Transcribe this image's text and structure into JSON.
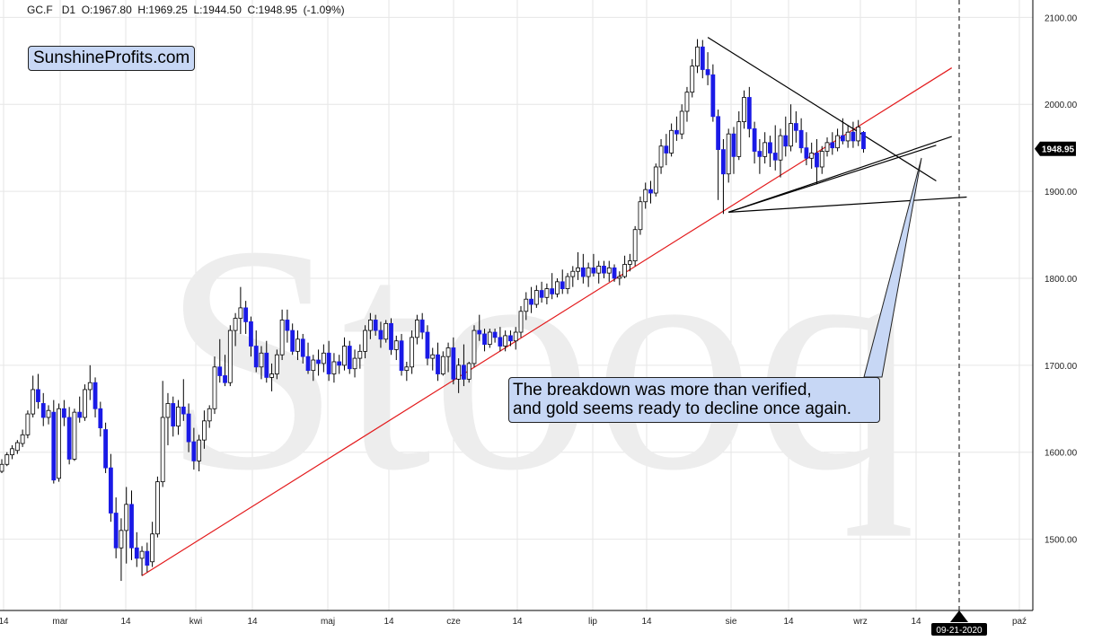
{
  "header": {
    "symbol": "GC.F",
    "interval": "D1",
    "open": "O:1967.80",
    "high": "H:1969.25",
    "low": "L:1944.50",
    "close": "C:1948.95",
    "change": "(-1.09%)"
  },
  "brand_label": "SunshineProfits.com",
  "watermark": "Stooq",
  "annotation": {
    "line1": "The breakdown was more than verified,",
    "line2": "and gold seems ready to decline once again."
  },
  "last_price_label": "1948.95",
  "cursor_date_label": "09-21-2020",
  "colors": {
    "up_candle_fill": "#ffffff",
    "down_candle_fill": "#1a1ae6",
    "candle_outline": "#000000",
    "trendline_red": "#e31a1c",
    "triangle_lines": "#000000",
    "grid": "#e6e6e6",
    "callout_fill": "#c7d7f5",
    "last_price_bg": "#000000"
  },
  "chart_data": {
    "type": "candlestick",
    "title": "GC.F D1",
    "y_axis": {
      "range": [
        1418,
        2120
      ],
      "ticks": [
        1500,
        1600,
        1700,
        1800,
        1900,
        2000,
        2100
      ],
      "tick_labels": [
        "1500.00",
        "1600.00",
        "1700.00",
        "1800.00",
        "1900.00",
        "2000.00",
        "2100.00"
      ],
      "side": "right"
    },
    "x_axis": {
      "tick_labels": [
        "14",
        "mar",
        "14",
        "kwi",
        "14",
        "maj",
        "14",
        "cze",
        "14",
        "lip",
        "14",
        "sie",
        "14",
        "wrz",
        "14",
        "paź"
      ]
    },
    "grid": true,
    "candles": [
      {
        "o": 1578,
        "h": 1592,
        "l": 1576,
        "c": 1586
      },
      {
        "o": 1586,
        "h": 1600,
        "l": 1584,
        "c": 1597
      },
      {
        "o": 1597,
        "h": 1608,
        "l": 1592,
        "c": 1604
      },
      {
        "o": 1602,
        "h": 1614,
        "l": 1598,
        "c": 1611
      },
      {
        "o": 1610,
        "h": 1626,
        "l": 1606,
        "c": 1620
      },
      {
        "o": 1620,
        "h": 1648,
        "l": 1616,
        "c": 1644
      },
      {
        "o": 1644,
        "h": 1688,
        "l": 1640,
        "c": 1672
      },
      {
        "o": 1672,
        "h": 1690,
        "l": 1650,
        "c": 1658
      },
      {
        "o": 1656,
        "h": 1668,
        "l": 1630,
        "c": 1640
      },
      {
        "o": 1640,
        "h": 1654,
        "l": 1632,
        "c": 1648
      },
      {
        "o": 1646,
        "h": 1660,
        "l": 1564,
        "c": 1568
      },
      {
        "o": 1570,
        "h": 1656,
        "l": 1566,
        "c": 1650
      },
      {
        "o": 1650,
        "h": 1660,
        "l": 1630,
        "c": 1640
      },
      {
        "o": 1640,
        "h": 1652,
        "l": 1586,
        "c": 1592
      },
      {
        "o": 1592,
        "h": 1650,
        "l": 1590,
        "c": 1646
      },
      {
        "o": 1646,
        "h": 1664,
        "l": 1634,
        "c": 1640
      },
      {
        "o": 1640,
        "h": 1678,
        "l": 1636,
        "c": 1672
      },
      {
        "o": 1672,
        "h": 1700,
        "l": 1660,
        "c": 1680
      },
      {
        "o": 1680,
        "h": 1686,
        "l": 1640,
        "c": 1650
      },
      {
        "o": 1650,
        "h": 1658,
        "l": 1618,
        "c": 1628
      },
      {
        "o": 1626,
        "h": 1634,
        "l": 1576,
        "c": 1582
      },
      {
        "o": 1582,
        "h": 1598,
        "l": 1520,
        "c": 1530
      },
      {
        "o": 1530,
        "h": 1548,
        "l": 1478,
        "c": 1490
      },
      {
        "o": 1490,
        "h": 1524,
        "l": 1452,
        "c": 1510
      },
      {
        "o": 1510,
        "h": 1560,
        "l": 1472,
        "c": 1540
      },
      {
        "o": 1540,
        "h": 1556,
        "l": 1476,
        "c": 1490
      },
      {
        "o": 1490,
        "h": 1508,
        "l": 1468,
        "c": 1478
      },
      {
        "o": 1478,
        "h": 1492,
        "l": 1458,
        "c": 1486
      },
      {
        "o": 1486,
        "h": 1496,
        "l": 1462,
        "c": 1470
      },
      {
        "o": 1474,
        "h": 1520,
        "l": 1468,
        "c": 1506
      },
      {
        "o": 1506,
        "h": 1572,
        "l": 1502,
        "c": 1566
      },
      {
        "o": 1566,
        "h": 1682,
        "l": 1560,
        "c": 1640
      },
      {
        "o": 1640,
        "h": 1668,
        "l": 1608,
        "c": 1656
      },
      {
        "o": 1656,
        "h": 1664,
        "l": 1618,
        "c": 1630
      },
      {
        "o": 1630,
        "h": 1660,
        "l": 1620,
        "c": 1652
      },
      {
        "o": 1652,
        "h": 1684,
        "l": 1636,
        "c": 1644
      },
      {
        "o": 1644,
        "h": 1656,
        "l": 1600,
        "c": 1612
      },
      {
        "o": 1612,
        "h": 1628,
        "l": 1580,
        "c": 1590
      },
      {
        "o": 1590,
        "h": 1620,
        "l": 1578,
        "c": 1614
      },
      {
        "o": 1614,
        "h": 1648,
        "l": 1604,
        "c": 1636
      },
      {
        "o": 1636,
        "h": 1654,
        "l": 1628,
        "c": 1650
      },
      {
        "o": 1650,
        "h": 1710,
        "l": 1644,
        "c": 1698
      },
      {
        "o": 1698,
        "h": 1730,
        "l": 1680,
        "c": 1688
      },
      {
        "o": 1688,
        "h": 1712,
        "l": 1676,
        "c": 1680
      },
      {
        "o": 1680,
        "h": 1746,
        "l": 1676,
        "c": 1740
      },
      {
        "o": 1740,
        "h": 1760,
        "l": 1722,
        "c": 1754
      },
      {
        "o": 1754,
        "h": 1790,
        "l": 1736,
        "c": 1766
      },
      {
        "o": 1766,
        "h": 1774,
        "l": 1736,
        "c": 1750
      },
      {
        "o": 1750,
        "h": 1756,
        "l": 1710,
        "c": 1722
      },
      {
        "o": 1722,
        "h": 1740,
        "l": 1692,
        "c": 1698
      },
      {
        "o": 1698,
        "h": 1722,
        "l": 1684,
        "c": 1714
      },
      {
        "o": 1714,
        "h": 1728,
        "l": 1680,
        "c": 1686
      },
      {
        "o": 1686,
        "h": 1702,
        "l": 1670,
        "c": 1690
      },
      {
        "o": 1690,
        "h": 1718,
        "l": 1684,
        "c": 1712
      },
      {
        "o": 1712,
        "h": 1764,
        "l": 1706,
        "c": 1752
      },
      {
        "o": 1752,
        "h": 1764,
        "l": 1726,
        "c": 1740
      },
      {
        "o": 1740,
        "h": 1748,
        "l": 1712,
        "c": 1716
      },
      {
        "o": 1716,
        "h": 1740,
        "l": 1706,
        "c": 1730
      },
      {
        "o": 1730,
        "h": 1736,
        "l": 1702,
        "c": 1710
      },
      {
        "o": 1710,
        "h": 1726,
        "l": 1690,
        "c": 1694
      },
      {
        "o": 1694,
        "h": 1712,
        "l": 1682,
        "c": 1706
      },
      {
        "o": 1706,
        "h": 1718,
        "l": 1688,
        "c": 1702
      },
      {
        "o": 1702,
        "h": 1724,
        "l": 1692,
        "c": 1714
      },
      {
        "o": 1714,
        "h": 1728,
        "l": 1682,
        "c": 1690
      },
      {
        "o": 1690,
        "h": 1714,
        "l": 1680,
        "c": 1704
      },
      {
        "o": 1704,
        "h": 1712,
        "l": 1690,
        "c": 1700
      },
      {
        "o": 1700,
        "h": 1732,
        "l": 1694,
        "c": 1722
      },
      {
        "o": 1722,
        "h": 1728,
        "l": 1690,
        "c": 1696
      },
      {
        "o": 1696,
        "h": 1718,
        "l": 1686,
        "c": 1708
      },
      {
        "o": 1708,
        "h": 1724,
        "l": 1696,
        "c": 1716
      },
      {
        "o": 1716,
        "h": 1746,
        "l": 1708,
        "c": 1740
      },
      {
        "o": 1740,
        "h": 1760,
        "l": 1730,
        "c": 1752
      },
      {
        "o": 1752,
        "h": 1758,
        "l": 1734,
        "c": 1740
      },
      {
        "o": 1740,
        "h": 1750,
        "l": 1720,
        "c": 1730
      },
      {
        "o": 1730,
        "h": 1752,
        "l": 1726,
        "c": 1748
      },
      {
        "o": 1748,
        "h": 1754,
        "l": 1712,
        "c": 1718
      },
      {
        "o": 1718,
        "h": 1734,
        "l": 1706,
        "c": 1728
      },
      {
        "o": 1728,
        "h": 1736,
        "l": 1688,
        "c": 1694
      },
      {
        "o": 1694,
        "h": 1704,
        "l": 1682,
        "c": 1698
      },
      {
        "o": 1698,
        "h": 1740,
        "l": 1690,
        "c": 1732
      },
      {
        "o": 1732,
        "h": 1758,
        "l": 1724,
        "c": 1752
      },
      {
        "o": 1752,
        "h": 1760,
        "l": 1730,
        "c": 1738
      },
      {
        "o": 1738,
        "h": 1746,
        "l": 1700,
        "c": 1708
      },
      {
        "o": 1708,
        "h": 1720,
        "l": 1694,
        "c": 1712
      },
      {
        "o": 1712,
        "h": 1726,
        "l": 1682,
        "c": 1690
      },
      {
        "o": 1690,
        "h": 1716,
        "l": 1688,
        "c": 1710
      },
      {
        "o": 1710,
        "h": 1726,
        "l": 1692,
        "c": 1720
      },
      {
        "o": 1720,
        "h": 1732,
        "l": 1678,
        "c": 1684
      },
      {
        "o": 1684,
        "h": 1708,
        "l": 1668,
        "c": 1700
      },
      {
        "o": 1700,
        "h": 1724,
        "l": 1676,
        "c": 1684
      },
      {
        "o": 1684,
        "h": 1704,
        "l": 1680,
        "c": 1702
      },
      {
        "o": 1702,
        "h": 1746,
        "l": 1698,
        "c": 1740
      },
      {
        "o": 1740,
        "h": 1758,
        "l": 1728,
        "c": 1736
      },
      {
        "o": 1736,
        "h": 1742,
        "l": 1716,
        "c": 1724
      },
      {
        "o": 1724,
        "h": 1742,
        "l": 1720,
        "c": 1738
      },
      {
        "o": 1738,
        "h": 1742,
        "l": 1726,
        "c": 1732
      },
      {
        "o": 1732,
        "h": 1744,
        "l": 1716,
        "c": 1722
      },
      {
        "o": 1722,
        "h": 1740,
        "l": 1716,
        "c": 1734
      },
      {
        "o": 1734,
        "h": 1740,
        "l": 1722,
        "c": 1728
      },
      {
        "o": 1728,
        "h": 1744,
        "l": 1718,
        "c": 1738
      },
      {
        "o": 1738,
        "h": 1768,
        "l": 1732,
        "c": 1762
      },
      {
        "o": 1762,
        "h": 1784,
        "l": 1752,
        "c": 1776
      },
      {
        "o": 1776,
        "h": 1790,
        "l": 1760,
        "c": 1770
      },
      {
        "o": 1770,
        "h": 1792,
        "l": 1766,
        "c": 1786
      },
      {
        "o": 1786,
        "h": 1796,
        "l": 1772,
        "c": 1778
      },
      {
        "o": 1778,
        "h": 1794,
        "l": 1770,
        "c": 1788
      },
      {
        "o": 1788,
        "h": 1806,
        "l": 1776,
        "c": 1782
      },
      {
        "o": 1782,
        "h": 1800,
        "l": 1778,
        "c": 1796
      },
      {
        "o": 1796,
        "h": 1810,
        "l": 1782,
        "c": 1788
      },
      {
        "o": 1788,
        "h": 1806,
        "l": 1782,
        "c": 1802
      },
      {
        "o": 1802,
        "h": 1814,
        "l": 1790,
        "c": 1808
      },
      {
        "o": 1808,
        "h": 1830,
        "l": 1798,
        "c": 1812
      },
      {
        "o": 1812,
        "h": 1828,
        "l": 1794,
        "c": 1802
      },
      {
        "o": 1802,
        "h": 1818,
        "l": 1790,
        "c": 1812
      },
      {
        "o": 1812,
        "h": 1828,
        "l": 1802,
        "c": 1806
      },
      {
        "o": 1806,
        "h": 1820,
        "l": 1794,
        "c": 1814
      },
      {
        "o": 1814,
        "h": 1820,
        "l": 1800,
        "c": 1806
      },
      {
        "o": 1806,
        "h": 1820,
        "l": 1796,
        "c": 1812
      },
      {
        "o": 1812,
        "h": 1816,
        "l": 1796,
        "c": 1800
      },
      {
        "o": 1800,
        "h": 1808,
        "l": 1792,
        "c": 1802
      },
      {
        "o": 1802,
        "h": 1826,
        "l": 1800,
        "c": 1816
      },
      {
        "o": 1816,
        "h": 1828,
        "l": 1808,
        "c": 1820
      },
      {
        "o": 1820,
        "h": 1860,
        "l": 1814,
        "c": 1856
      },
      {
        "o": 1856,
        "h": 1894,
        "l": 1850,
        "c": 1888
      },
      {
        "o": 1888,
        "h": 1910,
        "l": 1880,
        "c": 1902
      },
      {
        "o": 1902,
        "h": 1912,
        "l": 1886,
        "c": 1898
      },
      {
        "o": 1898,
        "h": 1932,
        "l": 1894,
        "c": 1928
      },
      {
        "o": 1928,
        "h": 1960,
        "l": 1920,
        "c": 1952
      },
      {
        "o": 1952,
        "h": 1966,
        "l": 1930,
        "c": 1944
      },
      {
        "o": 1944,
        "h": 1978,
        "l": 1940,
        "c": 1970
      },
      {
        "o": 1970,
        "h": 1986,
        "l": 1958,
        "c": 1966
      },
      {
        "o": 1966,
        "h": 2000,
        "l": 1960,
        "c": 1992
      },
      {
        "o": 1992,
        "h": 2020,
        "l": 1980,
        "c": 2014
      },
      {
        "o": 2014,
        "h": 2052,
        "l": 2008,
        "c": 2044
      },
      {
        "o": 2044,
        "h": 2075,
        "l": 2036,
        "c": 2066
      },
      {
        "o": 2066,
        "h": 2074,
        "l": 2030,
        "c": 2040
      },
      {
        "o": 2040,
        "h": 2060,
        "l": 2022,
        "c": 2034
      },
      {
        "o": 2034,
        "h": 2046,
        "l": 1980,
        "c": 1986
      },
      {
        "o": 1986,
        "h": 1994,
        "l": 1890,
        "c": 1948
      },
      {
        "o": 1948,
        "h": 1960,
        "l": 1874,
        "c": 1920
      },
      {
        "o": 1920,
        "h": 1972,
        "l": 1910,
        "c": 1966
      },
      {
        "o": 1966,
        "h": 1974,
        "l": 1920,
        "c": 1940
      },
      {
        "o": 1940,
        "h": 1992,
        "l": 1936,
        "c": 1980
      },
      {
        "o": 1980,
        "h": 2016,
        "l": 1972,
        "c": 2008
      },
      {
        "o": 2008,
        "h": 2020,
        "l": 1962,
        "c": 1972
      },
      {
        "o": 1972,
        "h": 1980,
        "l": 1932,
        "c": 1946
      },
      {
        "o": 1946,
        "h": 1960,
        "l": 1920,
        "c": 1940
      },
      {
        "o": 1940,
        "h": 1968,
        "l": 1932,
        "c": 1956
      },
      {
        "o": 1956,
        "h": 1964,
        "l": 1928,
        "c": 1944
      },
      {
        "o": 1944,
        "h": 1976,
        "l": 1924,
        "c": 1936
      },
      {
        "o": 1936,
        "h": 1972,
        "l": 1916,
        "c": 1964
      },
      {
        "o": 1964,
        "h": 1986,
        "l": 1940,
        "c": 1952
      },
      {
        "o": 1952,
        "h": 2000,
        "l": 1946,
        "c": 1978
      },
      {
        "o": 1978,
        "h": 1992,
        "l": 1956,
        "c": 1970
      },
      {
        "o": 1970,
        "h": 1984,
        "l": 1944,
        "c": 1950
      },
      {
        "o": 1950,
        "h": 1968,
        "l": 1930,
        "c": 1938
      },
      {
        "o": 1938,
        "h": 1956,
        "l": 1926,
        "c": 1944
      },
      {
        "o": 1944,
        "h": 1960,
        "l": 1908,
        "c": 1928
      },
      {
        "o": 1928,
        "h": 1952,
        "l": 1920,
        "c": 1946
      },
      {
        "o": 1946,
        "h": 1962,
        "l": 1940,
        "c": 1956
      },
      {
        "o": 1956,
        "h": 1968,
        "l": 1942,
        "c": 1950
      },
      {
        "o": 1950,
        "h": 1972,
        "l": 1946,
        "c": 1964
      },
      {
        "o": 1964,
        "h": 1984,
        "l": 1954,
        "c": 1958
      },
      {
        "o": 1958,
        "h": 1976,
        "l": 1950,
        "c": 1968
      },
      {
        "o": 1968,
        "h": 1980,
        "l": 1950,
        "c": 1958
      },
      {
        "o": 1958,
        "h": 1982,
        "l": 1952,
        "c": 1974
      },
      {
        "o": 1967.8,
        "h": 1969.25,
        "l": 1944.5,
        "c": 1948.95
      }
    ],
    "trendlines": [
      {
        "name": "rising support",
        "color": "red",
        "from": {
          "bar": 27,
          "price": 1458
        },
        "to": {
          "bar": 183,
          "price": 2042
        }
      },
      {
        "name": "triangle upper",
        "color": "black",
        "from": {
          "bar": 136,
          "price": 2077
        },
        "to": {
          "bar": 180,
          "price": 1912
        }
      },
      {
        "name": "triangle lower",
        "color": "black",
        "from": {
          "bar": 140,
          "price": 1876
        },
        "to": {
          "bar": 180,
          "price": 1953
        }
      },
      {
        "name": "triangle base edge",
        "color": "black",
        "from": {
          "bar": 140,
          "price": 1876
        },
        "to": {
          "bar": 140,
          "price": 1876
        }
      }
    ],
    "last_price": 1948.95
  }
}
